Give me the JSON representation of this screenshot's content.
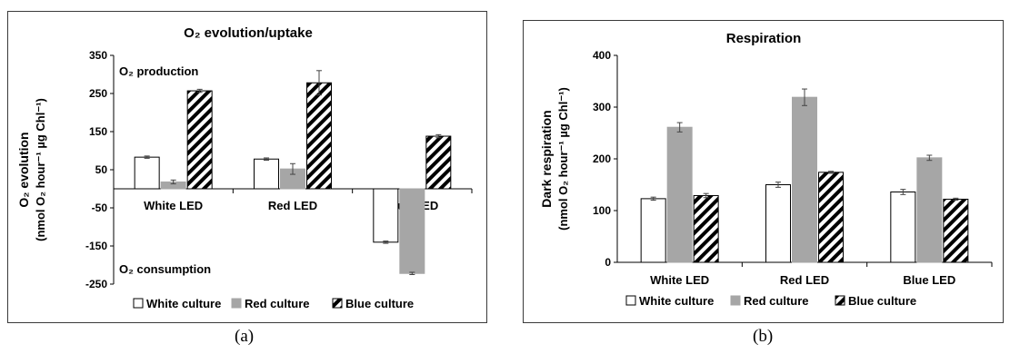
{
  "figure": {
    "caption_a": "(a)",
    "caption_b": "(b)"
  },
  "legend": [
    "White culture",
    "Red culture",
    "Blue culture"
  ],
  "colors": {
    "white_culture": "#ffffff",
    "red_culture": "#a6a6a6",
    "blue_culture_hatch": "#000000",
    "frame": "#3a3a3a"
  },
  "chart_data": [
    {
      "id": "a",
      "type": "bar",
      "title": "O₂ evolution/uptake",
      "ylabel_line1": "O₂ evolution",
      "ylabel_line2": "(nmol O₂ hour⁻¹ µg Chl⁻¹)",
      "ylim": [
        -250,
        350
      ],
      "yticks": [
        -250,
        -150,
        -50,
        50,
        150,
        250,
        350
      ],
      "categories": [
        "White LED",
        "Red LED",
        "Blue LED"
      ],
      "annotations": [
        "O₂ production",
        "O₂ consumption"
      ],
      "series": [
        {
          "name": "White culture",
          "values": [
            83,
            78,
            -140
          ],
          "errors": [
            3,
            3,
            3
          ]
        },
        {
          "name": "Red culture",
          "values": [
            18,
            52,
            -222
          ],
          "errors": [
            5,
            14,
            3
          ]
        },
        {
          "name": "Blue culture",
          "values": [
            257,
            278,
            138
          ],
          "errors": [
            4,
            32,
            4
          ]
        }
      ],
      "grid": false,
      "legend_position": "bottom"
    },
    {
      "id": "b",
      "type": "bar",
      "title": "Respiration",
      "ylabel_line1": "Dark respiration",
      "ylabel_line2": "(nmol O₂ hour⁻¹ µg Chl⁻¹)",
      "ylim": [
        0,
        400
      ],
      "yticks": [
        0,
        100,
        200,
        300,
        400
      ],
      "categories": [
        "White LED",
        "Red LED",
        "Blue LED"
      ],
      "series": [
        {
          "name": "White culture",
          "values": [
            123,
            150,
            136
          ],
          "errors": [
            3,
            5,
            5
          ]
        },
        {
          "name": "Red culture",
          "values": [
            261,
            319,
            202
          ],
          "errors": [
            9,
            16,
            5
          ]
        },
        {
          "name": "Blue culture",
          "values": [
            129,
            174,
            122
          ],
          "errors": [
            4,
            2,
            2
          ]
        }
      ],
      "grid": false,
      "legend_position": "bottom"
    }
  ]
}
